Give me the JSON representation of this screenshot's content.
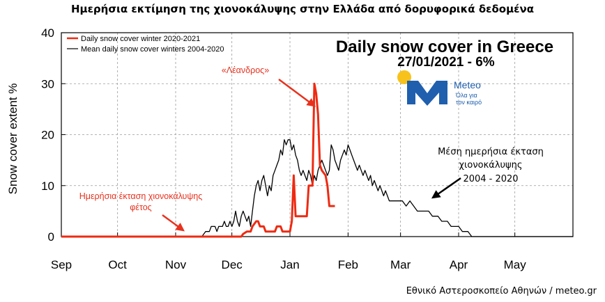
{
  "figure_title": "Ημερήσια εκτίμηση της χιονοκάλυψης στην Ελλάδα από δορυφορικά δεδομένα",
  "footer": "Εθνικό Αστεροσκοπείο Αθηνών / meteo.gr",
  "logo": {
    "name": "Meteo",
    "tagline_line1": "Όλα για",
    "tagline_line2": "τον καιρό",
    "sun_color": "#f7c21b",
    "brand_color": "#1f5fae"
  },
  "chart_data": {
    "type": "line",
    "title": "Daily snow cover in Greece",
    "subtitle": "27/01/2021 - 6%",
    "xlabel": "",
    "ylabel": "Snow cover extent %",
    "ylim": [
      0,
      40
    ],
    "xlim": [
      0,
      273
    ],
    "yticks": [
      0,
      10,
      20,
      30,
      40
    ],
    "xticks": [
      {
        "label": "Sep",
        "day": 0
      },
      {
        "label": "Oct",
        "day": 30
      },
      {
        "label": "Nov",
        "day": 61
      },
      {
        "label": "Dec",
        "day": 91
      },
      {
        "label": "Jan",
        "day": 122
      },
      {
        "label": "Feb",
        "day": 153
      },
      {
        "label": "Mar",
        "day": 181
      },
      {
        "label": "Apr",
        "day": 212
      },
      {
        "label": "May",
        "day": 242
      }
    ],
    "grid": true,
    "legend_position": "top-left",
    "series": [
      {
        "name": "Daily snow cover winter 2020-2021",
        "color": "#ee2a12",
        "points": [
          [
            0,
            0
          ],
          [
            96,
            0
          ],
          [
            97,
            0.5
          ],
          [
            99,
            1
          ],
          [
            101,
            1
          ],
          [
            102,
            2
          ],
          [
            104,
            3
          ],
          [
            105,
            3
          ],
          [
            106,
            2
          ],
          [
            108,
            2
          ],
          [
            109,
            1
          ],
          [
            113,
            1
          ],
          [
            114,
            1
          ],
          [
            115,
            2
          ],
          [
            117,
            2
          ],
          [
            118,
            1
          ],
          [
            122,
            1
          ],
          [
            123,
            3
          ],
          [
            124,
            12
          ],
          [
            125,
            4
          ],
          [
            131,
            4
          ],
          [
            132,
            10
          ],
          [
            134,
            10
          ],
          [
            135,
            30
          ],
          [
            136,
            28
          ],
          [
            137,
            24
          ],
          [
            138,
            14
          ],
          [
            139,
            13
          ],
          [
            141,
            12
          ],
          [
            142,
            10
          ],
          [
            143,
            6
          ],
          [
            146,
            6
          ]
        ]
      },
      {
        "name": "Mean daily snow cover winters 2004-2020",
        "color": "#000000",
        "points": [
          [
            0,
            0
          ],
          [
            75,
            0
          ],
          [
            77,
            1
          ],
          [
            79,
            1
          ],
          [
            80,
            2
          ],
          [
            82,
            2
          ],
          [
            83,
            1
          ],
          [
            84,
            2
          ],
          [
            86,
            2
          ],
          [
            87,
            3
          ],
          [
            88,
            2
          ],
          [
            89,
            2
          ],
          [
            90,
            3
          ],
          [
            91,
            2
          ],
          [
            92,
            3
          ],
          [
            93,
            5
          ],
          [
            94,
            3
          ],
          [
            95,
            2
          ],
          [
            96,
            4
          ],
          [
            97,
            5
          ],
          [
            98,
            4
          ],
          [
            99,
            3
          ],
          [
            100,
            4
          ],
          [
            101,
            2
          ],
          [
            102,
            5
          ],
          [
            103,
            8
          ],
          [
            104,
            10
          ],
          [
            105,
            11
          ],
          [
            106,
            9
          ],
          [
            107,
            11
          ],
          [
            108,
            12
          ],
          [
            109,
            10
          ],
          [
            110,
            8
          ],
          [
            111,
            10
          ],
          [
            112,
            9
          ],
          [
            113,
            12
          ],
          [
            114,
            13
          ],
          [
            115,
            14
          ],
          [
            116,
            15
          ],
          [
            117,
            17
          ],
          [
            118,
            16
          ],
          [
            119,
            19
          ],
          [
            120,
            18
          ],
          [
            121,
            19
          ],
          [
            122,
            19
          ],
          [
            123,
            17
          ],
          [
            124,
            18
          ],
          [
            125,
            16
          ],
          [
            126,
            15
          ],
          [
            127,
            13
          ],
          [
            128,
            12
          ],
          [
            129,
            13
          ],
          [
            130,
            12
          ],
          [
            131,
            11
          ],
          [
            132,
            13
          ],
          [
            133,
            12
          ],
          [
            134,
            10
          ],
          [
            135,
            12
          ],
          [
            136,
            11
          ],
          [
            137,
            13
          ],
          [
            138,
            14
          ],
          [
            139,
            15
          ],
          [
            140,
            14
          ],
          [
            141,
            13
          ],
          [
            142,
            12
          ],
          [
            143,
            13
          ],
          [
            144,
            18
          ],
          [
            145,
            17
          ],
          [
            146,
            15
          ],
          [
            147,
            14
          ],
          [
            148,
            13
          ],
          [
            149,
            15
          ],
          [
            150,
            16
          ],
          [
            151,
            17
          ],
          [
            152,
            16
          ],
          [
            153,
            18
          ],
          [
            154,
            17
          ],
          [
            155,
            16
          ],
          [
            156,
            15
          ],
          [
            157,
            14
          ],
          [
            158,
            13
          ],
          [
            159,
            14
          ],
          [
            160,
            13
          ],
          [
            161,
            12
          ],
          [
            162,
            13
          ],
          [
            163,
            12
          ],
          [
            164,
            11
          ],
          [
            165,
            12
          ],
          [
            166,
            10
          ],
          [
            167,
            11
          ],
          [
            168,
            10
          ],
          [
            169,
            9
          ],
          [
            170,
            10
          ],
          [
            171,
            9
          ],
          [
            172,
            8
          ],
          [
            173,
            9
          ],
          [
            174,
            8
          ],
          [
            175,
            7
          ],
          [
            177,
            7
          ],
          [
            180,
            7
          ],
          [
            182,
            7
          ],
          [
            184,
            6
          ],
          [
            186,
            7
          ],
          [
            188,
            6
          ],
          [
            190,
            5
          ],
          [
            192,
            5
          ],
          [
            196,
            5
          ],
          [
            198,
            4
          ],
          [
            201,
            4
          ],
          [
            203,
            3
          ],
          [
            206,
            3
          ],
          [
            208,
            2
          ],
          [
            212,
            2
          ],
          [
            214,
            1
          ],
          [
            217,
            1
          ],
          [
            219,
            0
          ],
          [
            273,
            0
          ]
        ]
      }
    ],
    "annotations": {
      "leandros": "«Λέανδρος»",
      "daily_line1": "Ημερήσια έκταση χιονοκάλυψης",
      "daily_line2": "φέτος",
      "mean_line1": "Μέση ημερήσια έκταση",
      "mean_line2": "χιονοκάλυψης",
      "mean_line3": "2004 - 2020"
    }
  }
}
